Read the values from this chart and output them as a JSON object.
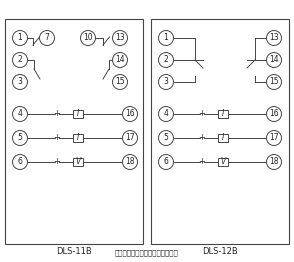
{
  "label_11b": "DLS-11B",
  "label_12b": "DLS-12B",
  "note": "注：触点处在跳闸位置时的接线图",
  "bg_color": "#ffffff",
  "line_color": "#444444",
  "text_color": "#222222",
  "font_size": 5.5,
  "note_font_size": 5.0,
  "circle_r": 0.038
}
